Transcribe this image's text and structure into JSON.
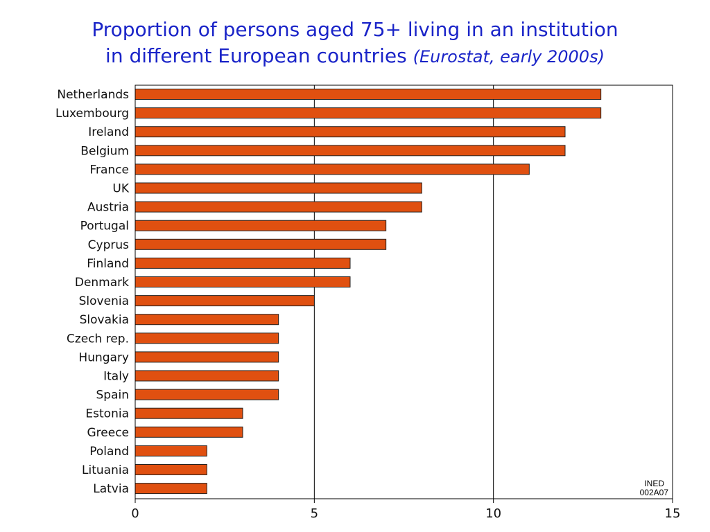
{
  "title": {
    "line1": "Proportion of persons aged 75+ living in an institution",
    "line2": "in different European countries",
    "source": "(Eurostat, early 2000s)"
  },
  "note": {
    "line1": "INED",
    "line2": "002A07"
  },
  "colors": {
    "bar": "#e05010",
    "bar_outline": "#222222",
    "axis": "#000000",
    "title": "#1a24c8"
  },
  "chart_data": {
    "type": "bar",
    "orientation": "horizontal",
    "title": "Proportion of persons aged 75+ living in an institution in different European countries (Eurostat, early 2000s)",
    "xlabel": "",
    "ylabel": "",
    "xlim": [
      0,
      15
    ],
    "xticks": [
      0,
      5,
      10,
      15
    ],
    "grid": "vertical lines at 5 and 10",
    "legend": "none",
    "categories": [
      "Netherlands",
      "Luxembourg",
      "Ireland",
      "Belgium",
      "France",
      "UK",
      "Austria",
      "Portugal",
      "Cyprus",
      "Finland",
      "Denmark",
      "Slovenia",
      "Slovakia",
      "Czech rep.",
      "Hungary",
      "Italy",
      "Spain",
      "Estonia",
      "Greece",
      "Poland",
      "Lituania",
      "Latvia"
    ],
    "values": [
      13,
      13,
      12,
      12,
      11,
      8,
      8,
      7,
      7,
      6,
      6,
      5,
      4,
      4,
      4,
      4,
      4,
      3,
      3,
      2,
      2,
      2
    ]
  }
}
